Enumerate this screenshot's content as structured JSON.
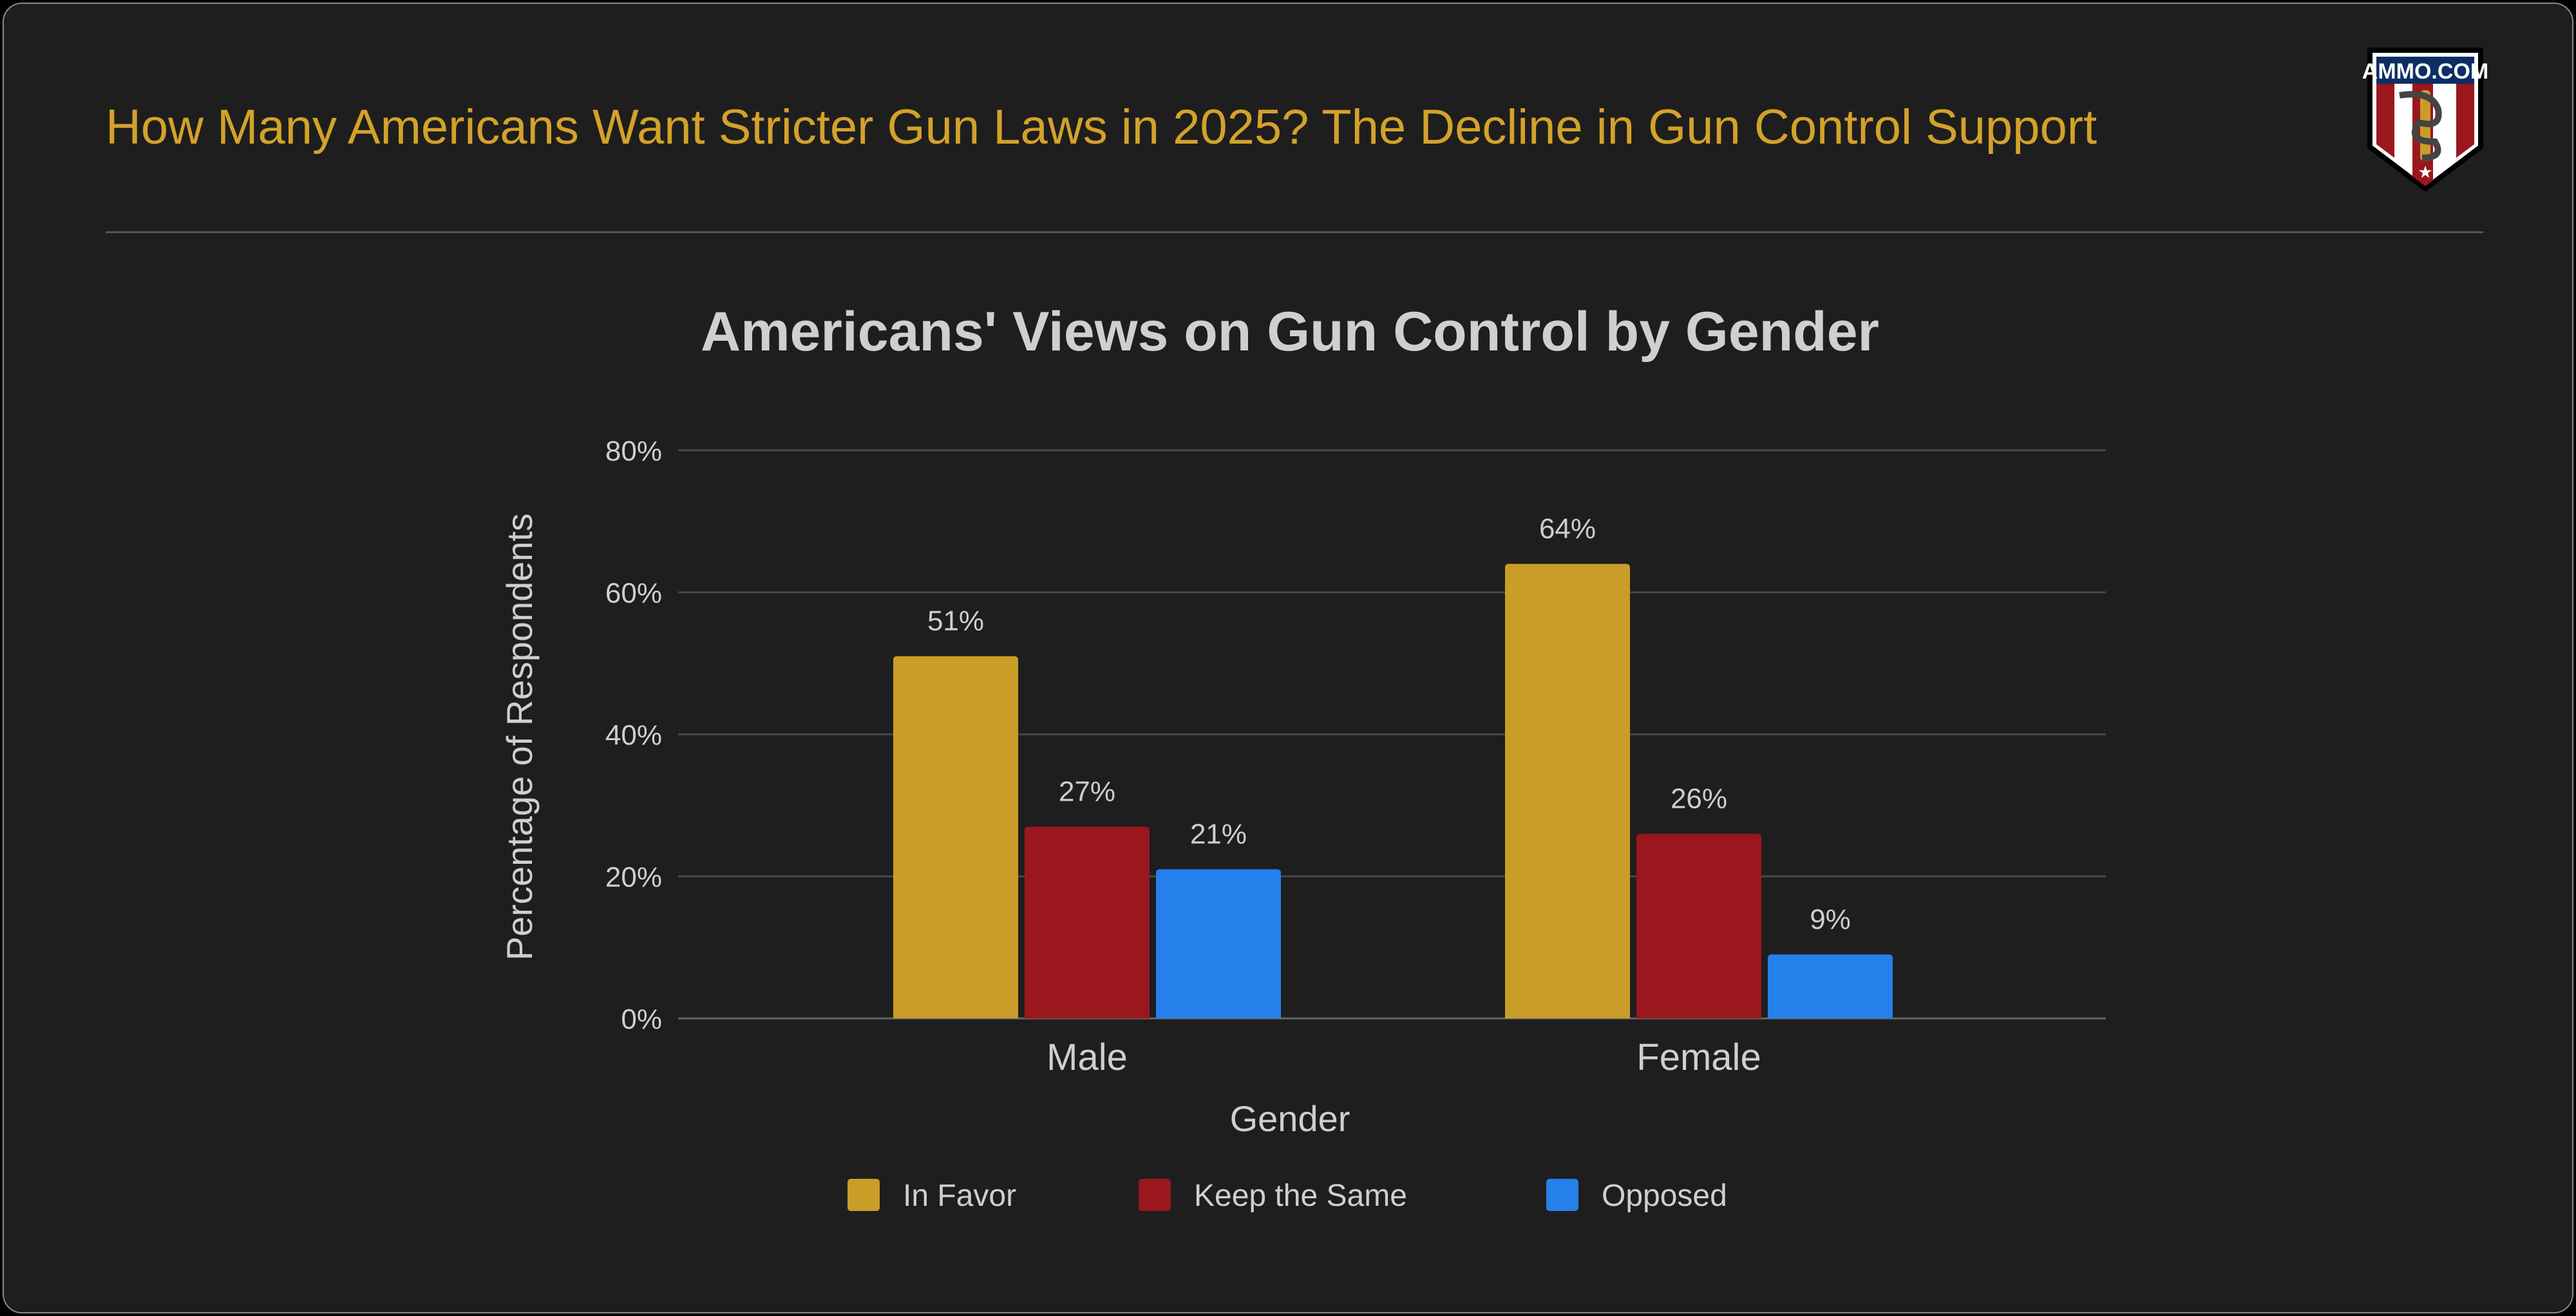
{
  "header": {
    "title": "How Many Americans Want Stricter Gun Laws in 2025? The Decline in Gun Control Support",
    "logo_text": "AMMO.COM"
  },
  "chart_data": {
    "type": "bar",
    "title": "Americans' Views on Gun Control by Gender",
    "xlabel": "Gender",
    "ylabel": "Percentage of Respondents",
    "categories": [
      "Male",
      "Female"
    ],
    "series": [
      {
        "name": "In Favor",
        "values": [
          51,
          64
        ],
        "labels": [
          "51%",
          "64%"
        ],
        "color": "#c99d27"
      },
      {
        "name": "Keep the Same",
        "values": [
          27,
          26
        ],
        "labels": [
          "27%",
          "26%"
        ],
        "color": "#9a171e"
      },
      {
        "name": "Opposed",
        "values": [
          21,
          9
        ],
        "labels": [
          "21%",
          "9%"
        ],
        "color": "#2680eb"
      }
    ],
    "ylim": [
      0,
      80
    ],
    "yticks": [
      "0%",
      "20%",
      "40%",
      "60%",
      "80%"
    ],
    "grid": true,
    "legend": "bottom"
  }
}
